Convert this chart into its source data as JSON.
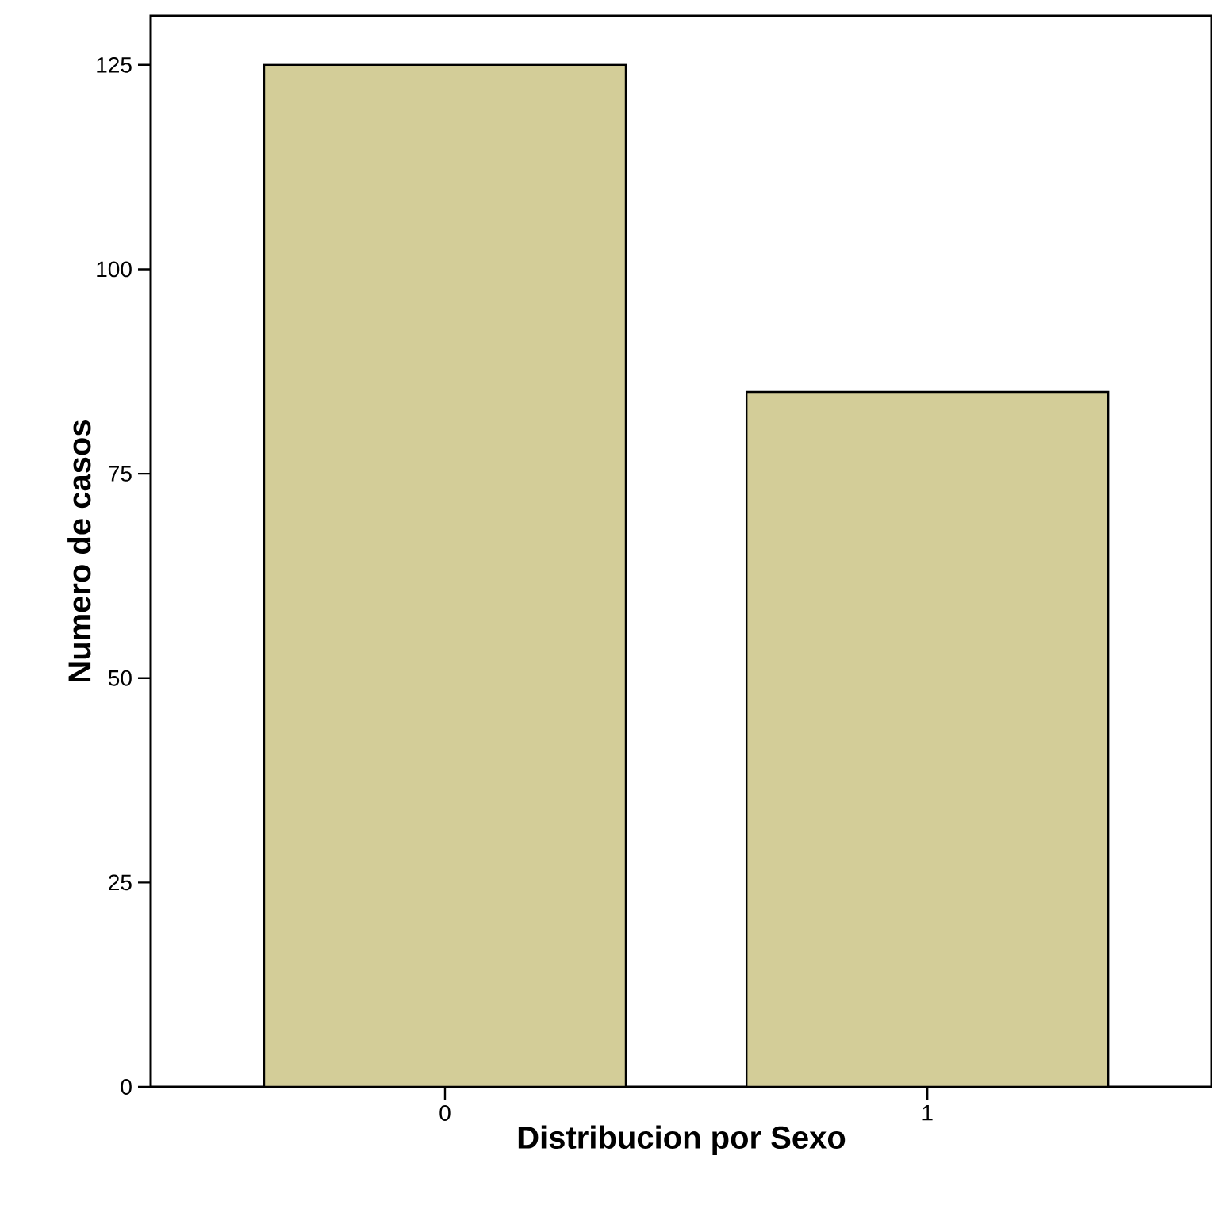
{
  "chart_data": {
    "type": "bar",
    "xlabel": "Distribucion por Sexo",
    "ylabel": "Numero de casos",
    "categories": [
      "0",
      "1"
    ],
    "values": [
      125,
      85
    ],
    "color": "#d3cd98",
    "ylim": [
      0,
      131
    ],
    "yticks": [
      0,
      25,
      50,
      75,
      100,
      125
    ],
    "grid": false
  }
}
